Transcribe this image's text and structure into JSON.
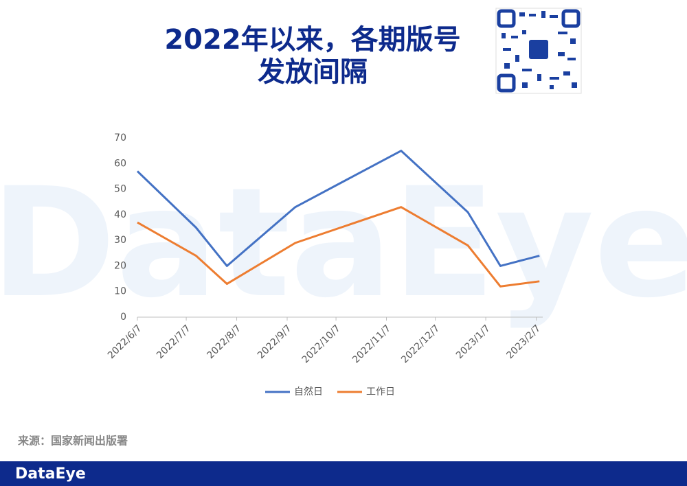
{
  "chart_data": {
    "type": "line",
    "title": [
      "2022年以来，各期版号",
      "发放间隔"
    ],
    "x": [
      "2022/6/7",
      "2022/7/13",
      "2022/8/1",
      "2022/9/12",
      "2022/11/16",
      "2022/12/27",
      "2023/1/16",
      "2023/2/9"
    ],
    "series": [
      {
        "name": "自然日",
        "color": "#4472c4",
        "values": [
          57,
          35,
          20,
          43,
          65,
          41,
          20,
          24
        ]
      },
      {
        "name": "工作日",
        "color": "#ed7d31",
        "values": [
          37,
          24,
          13,
          29,
          43,
          28,
          12,
          14
        ]
      }
    ],
    "xlim": [
      "2022/6/7",
      "2023/2/11"
    ],
    "xticks": [
      "2022/6/7",
      "2022/7/7",
      "2022/8/7",
      "2022/9/7",
      "2022/10/7",
      "2022/11/7",
      "2022/12/7",
      "2023/1/7",
      "2023/2/7"
    ],
    "ylim": [
      0,
      70
    ],
    "yticks": [
      0,
      10,
      20,
      30,
      40,
      50,
      60,
      70
    ],
    "grid": false,
    "legend": "bottom",
    "source": "来源：国家新闻出版署",
    "watermark": "DataEye",
    "footer": "DataEye"
  }
}
